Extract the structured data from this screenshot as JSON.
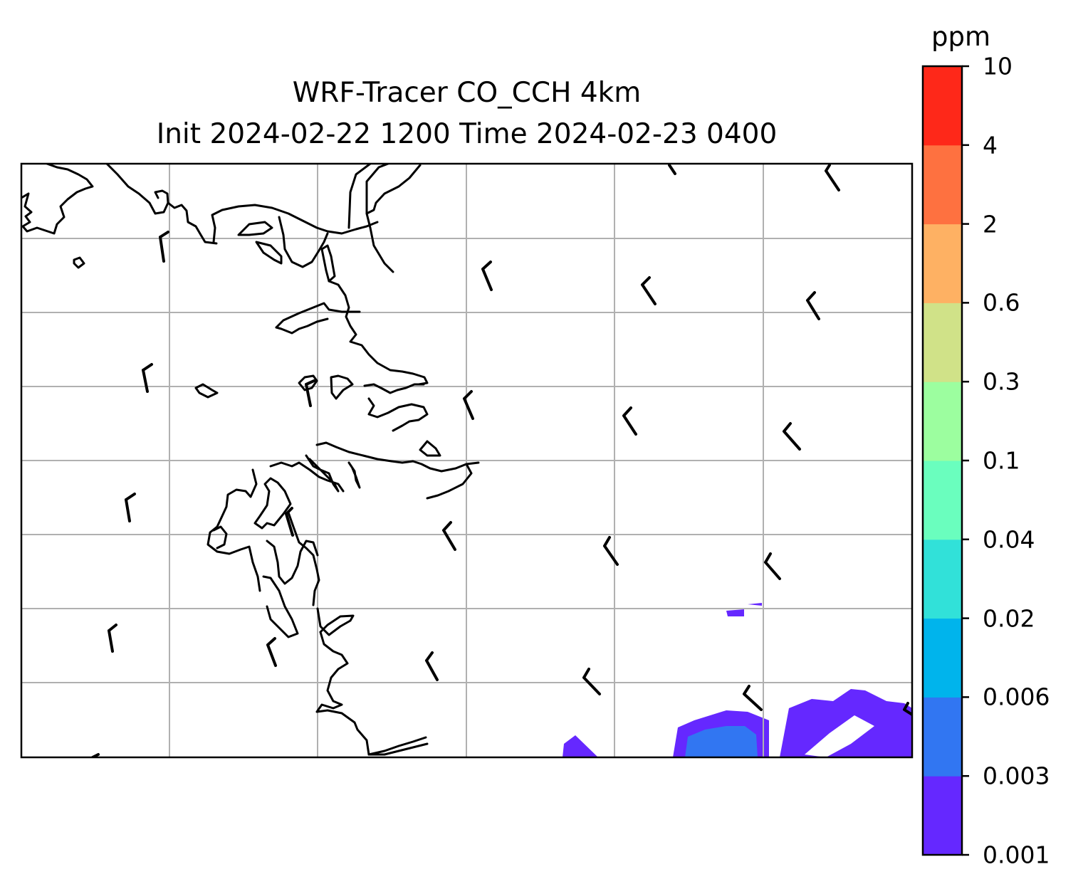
{
  "title": {
    "line1": "WRF-Tracer CO_CCH 4km",
    "line2": "Init 2024-02-22 1200 Time 2024-02-23 0400"
  },
  "colorbar": {
    "unit": "ppm",
    "levels": [
      "0.001",
      "0.003",
      "0.006",
      "0.02",
      "0.04",
      "0.1",
      "0.3",
      "0.6",
      "2",
      "4",
      "10"
    ],
    "colors": [
      "#6528ff",
      "#3176f2",
      "#00b4ec",
      "#31e1d9",
      "#6afebe",
      "#9cfe9f",
      "#d0e288",
      "#feb163",
      "#fe7140",
      "#fe2819"
    ]
  },
  "map": {
    "gridlines": true,
    "gridline_color": "#b0b0b0",
    "coastline_color": "#000000",
    "wind_barb_color": "#000000"
  }
}
